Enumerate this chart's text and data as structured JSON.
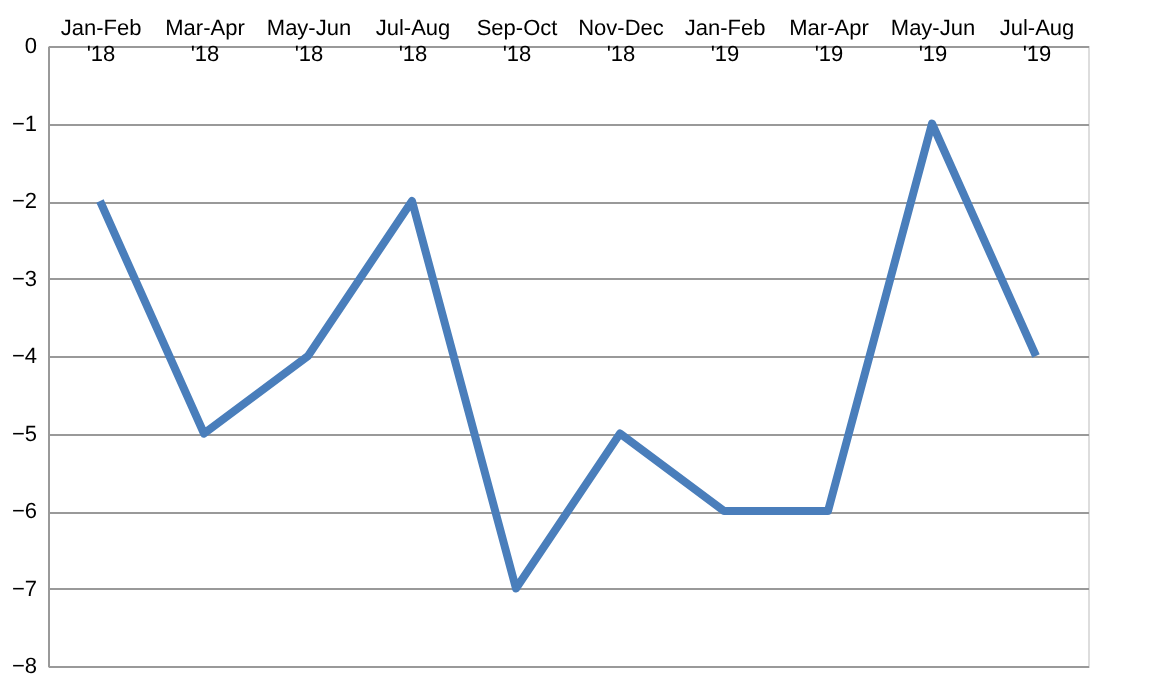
{
  "chart_data": {
    "type": "line",
    "categories": [
      "Jan-Feb '18",
      "Mar-Apr '18",
      "May-Jun '18",
      "Jul-Aug '18",
      "Sep-Oct '18",
      "Nov-Dec '18",
      "Jan-Feb '19",
      "Mar-Apr '19",
      "May-Jun '19",
      "Jul-Aug '19"
    ],
    "series": [
      {
        "color": "#4a7ebb",
        "values": [
          -2,
          -5,
          -4,
          -2,
          -7,
          -5,
          -6,
          -6,
          -1,
          -4
        ]
      }
    ],
    "ylim": [
      -8,
      0
    ],
    "yticks": [
      -8,
      -7,
      -6,
      -5,
      -4,
      -3,
      -2,
      -1,
      0
    ],
    "grid": "y",
    "marker": "none",
    "line_style": "solid"
  }
}
